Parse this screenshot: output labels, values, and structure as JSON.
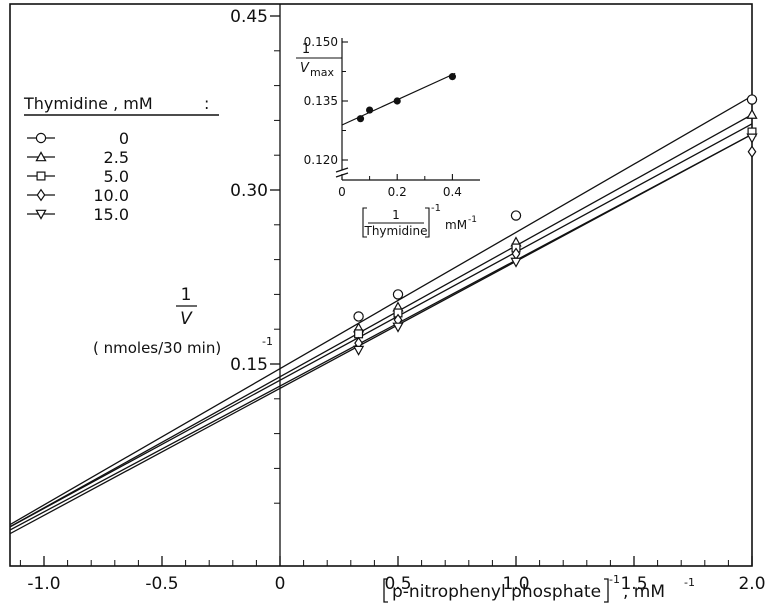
{
  "chart_data": {
    "type": "scatter",
    "main": {
      "xlabel": {
        "bracket_text": "p-nitrophenyl phosphate",
        "exponent": "-1",
        "unit": ", mM",
        "unit_exp": "-1"
      },
      "ylabel": {
        "numerator": "1",
        "denominator": "V",
        "unit": "( nmoles/30 min)",
        "unit_exp": "-1"
      },
      "xlim": [
        -1.1,
        2.0
      ],
      "ylim": [
        0.0,
        0.55
      ],
      "xticks": [
        -1.0,
        -0.5,
        0,
        0.5,
        1.0,
        1.5,
        2.0
      ],
      "xtick_labels": [
        "-1.0",
        "-0.5",
        "0",
        "0.5",
        "1.0",
        "1.5",
        "2.0"
      ],
      "yticks": [
        0.15,
        0.3,
        0.45
      ],
      "ytick_labels": [
        "0.15",
        "0.30",
        "0.45"
      ],
      "legend": {
        "title": "Thymidine , mM",
        "title_suffix": ":",
        "placement": "upper-left"
      },
      "series": [
        {
          "name": "0",
          "marker": "circle",
          "x": [
            0.333,
            0.5,
            1.0,
            2.0
          ],
          "y": [
            0.191,
            0.21,
            0.278,
            0.378
          ],
          "fit": {
            "slope": 0.1175,
            "intercept": 0.146
          }
        },
        {
          "name": "2.5",
          "marker": "triangle-up",
          "x": [
            0.333,
            0.5,
            1.0,
            2.0
          ],
          "y": [
            0.181,
            0.199,
            0.255,
            0.365
          ],
          "fit": {
            "slope": 0.113,
            "intercept": 0.139
          }
        },
        {
          "name": "5.0",
          "marker": "square",
          "x": [
            0.333,
            0.5,
            1.0,
            2.0
          ],
          "y": [
            0.176,
            0.194,
            0.25,
            0.35
          ],
          "fit": {
            "slope": 0.1105,
            "intercept": 0.136
          }
        },
        {
          "name": "10.0",
          "marker": "diamond",
          "x": [
            0.333,
            0.5,
            1.0,
            2.0
          ],
          "y": [
            0.168,
            0.188,
            0.245,
            0.333
          ],
          "fit": {
            "slope": 0.1085,
            "intercept": 0.131
          }
        },
        {
          "name": "15.0",
          "marker": "triangle-down",
          "x": [
            0.333,
            0.5,
            1.0,
            2.0
          ],
          "y": [
            0.162,
            0.182,
            0.238,
            0.345
          ],
          "fit": {
            "slope": 0.1095,
            "intercept": 0.129
          }
        }
      ]
    },
    "inset": {
      "type": "scatter",
      "xlabel": {
        "bracket_text": "Thymidine",
        "numerator": "1",
        "exponent": "-1",
        "unit": "mM",
        "unit_exp": "-1"
      },
      "ylabel": {
        "numerator": "1",
        "denominator": "V",
        "subscript": "max"
      },
      "xlim": [
        0,
        0.5
      ],
      "ylim": [
        0.114,
        0.15
      ],
      "xticks": [
        0,
        0.2,
        0.4
      ],
      "xtick_labels": [
        "0",
        "0.2",
        "0.4"
      ],
      "yticks": [
        0.12,
        0.135,
        0.15
      ],
      "ytick_labels": [
        "0.120",
        "0.135",
        "0.150"
      ],
      "axis_break": true,
      "points": {
        "x": [
          0.067,
          0.1,
          0.2,
          0.4
        ],
        "y": [
          0.1305,
          0.1327,
          0.135,
          0.1412
        ]
      },
      "fit": {
        "slope": 0.032,
        "intercept": 0.1289
      }
    }
  }
}
